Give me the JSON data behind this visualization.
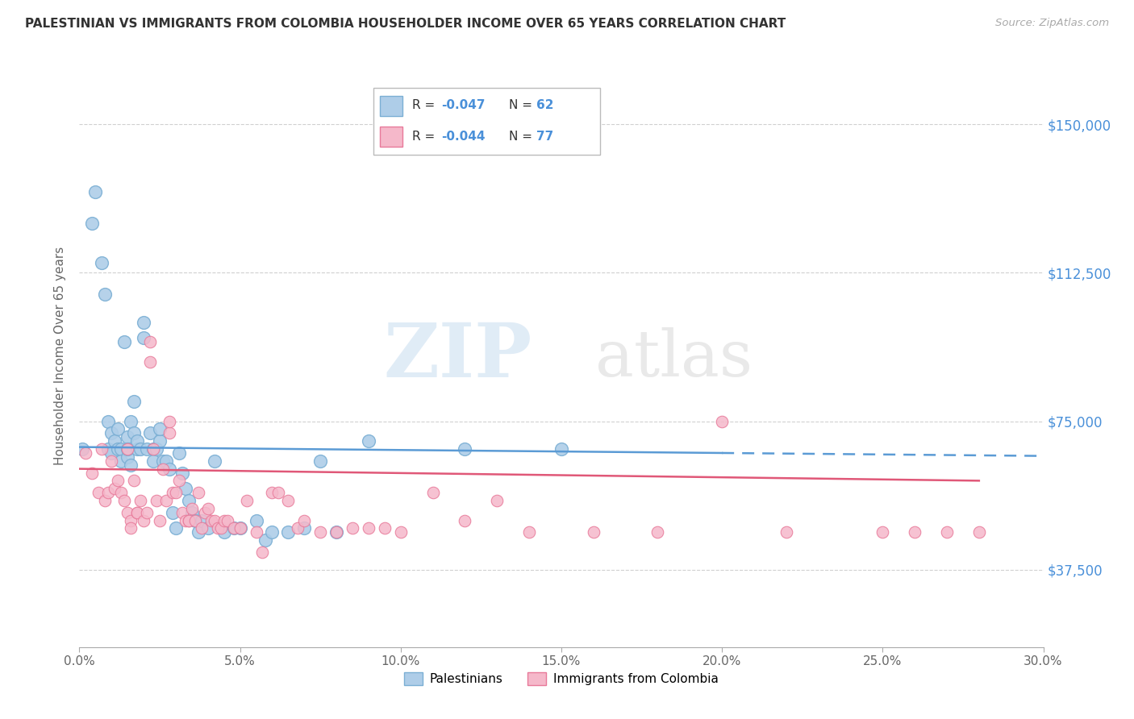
{
  "title": "PALESTINIAN VS IMMIGRANTS FROM COLOMBIA HOUSEHOLDER INCOME OVER 65 YEARS CORRELATION CHART",
  "source": "Source: ZipAtlas.com",
  "ylabel": "Householder Income Over 65 years",
  "xlabel_ticks": [
    "0.0%",
    "5.0%",
    "10.0%",
    "15.0%",
    "20.0%",
    "25.0%",
    "30.0%"
  ],
  "ytick_labels": [
    "$37,500",
    "$75,000",
    "$112,500",
    "$150,000"
  ],
  "ytick_values": [
    37500,
    75000,
    112500,
    150000
  ],
  "xlim": [
    0.0,
    0.3
  ],
  "ylim": [
    18000,
    165000
  ],
  "blue_color": "#aecde8",
  "blue_edge": "#7bafd4",
  "pink_color": "#f5b8ca",
  "pink_edge": "#e87a9a",
  "blue_line_color": "#5b9bd5",
  "pink_line_color": "#e05878",
  "watermark_zip": "ZIP",
  "watermark_atlas": "atlas",
  "legend_r_blue": "R = -0.047",
  "legend_n_blue": "N = 62",
  "legend_r_pink": "R = -0.044",
  "legend_n_pink": "N = 77",
  "legend_label_blue": "Palestinians",
  "legend_label_pink": "Immigrants from Colombia",
  "blue_x": [
    0.001,
    0.004,
    0.005,
    0.007,
    0.008,
    0.009,
    0.009,
    0.01,
    0.01,
    0.011,
    0.012,
    0.012,
    0.013,
    0.013,
    0.014,
    0.015,
    0.015,
    0.015,
    0.016,
    0.016,
    0.017,
    0.017,
    0.018,
    0.018,
    0.019,
    0.02,
    0.02,
    0.021,
    0.022,
    0.023,
    0.023,
    0.024,
    0.025,
    0.025,
    0.026,
    0.027,
    0.028,
    0.029,
    0.03,
    0.031,
    0.032,
    0.033,
    0.034,
    0.035,
    0.036,
    0.037,
    0.038,
    0.04,
    0.042,
    0.045,
    0.048,
    0.05,
    0.055,
    0.058,
    0.06,
    0.065,
    0.07,
    0.075,
    0.08,
    0.09,
    0.12,
    0.15
  ],
  "blue_y": [
    68000,
    125000,
    133000,
    115000,
    107000,
    75000,
    68000,
    72000,
    67000,
    70000,
    73000,
    68000,
    68000,
    65000,
    95000,
    71000,
    66000,
    68000,
    75000,
    64000,
    80000,
    72000,
    68000,
    70000,
    68000,
    100000,
    96000,
    68000,
    72000,
    68000,
    65000,
    68000,
    70000,
    73000,
    65000,
    65000,
    63000,
    52000,
    48000,
    67000,
    62000,
    58000,
    55000,
    52000,
    50000,
    47000,
    50000,
    48000,
    65000,
    47000,
    48000,
    48000,
    50000,
    45000,
    47000,
    47000,
    48000,
    65000,
    47000,
    70000,
    68000,
    68000
  ],
  "pink_x": [
    0.002,
    0.004,
    0.006,
    0.007,
    0.008,
    0.009,
    0.01,
    0.011,
    0.012,
    0.013,
    0.014,
    0.015,
    0.015,
    0.016,
    0.016,
    0.017,
    0.018,
    0.018,
    0.019,
    0.02,
    0.021,
    0.022,
    0.022,
    0.023,
    0.024,
    0.025,
    0.026,
    0.027,
    0.028,
    0.028,
    0.029,
    0.03,
    0.031,
    0.032,
    0.033,
    0.034,
    0.034,
    0.035,
    0.036,
    0.037,
    0.038,
    0.039,
    0.04,
    0.041,
    0.042,
    0.043,
    0.044,
    0.045,
    0.046,
    0.048,
    0.05,
    0.052,
    0.055,
    0.057,
    0.06,
    0.062,
    0.065,
    0.068,
    0.07,
    0.075,
    0.08,
    0.085,
    0.09,
    0.095,
    0.1,
    0.11,
    0.12,
    0.13,
    0.14,
    0.16,
    0.18,
    0.2,
    0.22,
    0.25,
    0.26,
    0.27,
    0.28
  ],
  "pink_y": [
    67000,
    62000,
    57000,
    68000,
    55000,
    57000,
    65000,
    58000,
    60000,
    57000,
    55000,
    68000,
    52000,
    50000,
    48000,
    60000,
    52000,
    52000,
    55000,
    50000,
    52000,
    95000,
    90000,
    68000,
    55000,
    50000,
    63000,
    55000,
    72000,
    75000,
    57000,
    57000,
    60000,
    52000,
    50000,
    50000,
    50000,
    53000,
    50000,
    57000,
    48000,
    52000,
    53000,
    50000,
    50000,
    48000,
    48000,
    50000,
    50000,
    48000,
    48000,
    55000,
    47000,
    42000,
    57000,
    57000,
    55000,
    48000,
    50000,
    47000,
    47000,
    48000,
    48000,
    48000,
    47000,
    57000,
    50000,
    55000,
    47000,
    47000,
    47000,
    75000,
    47000,
    47000,
    47000,
    47000,
    47000
  ]
}
